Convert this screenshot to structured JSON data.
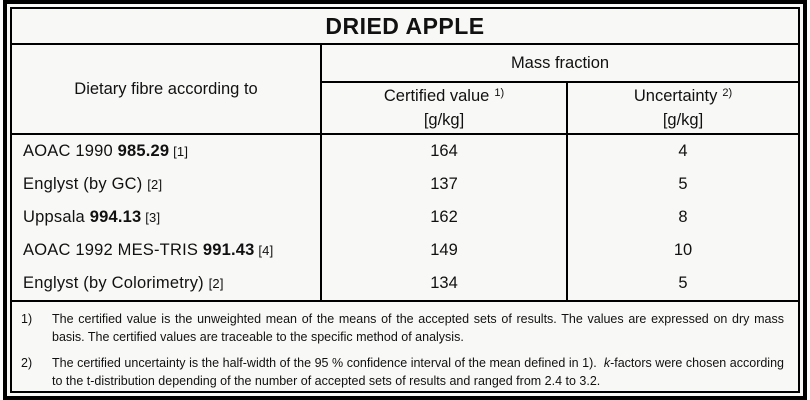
{
  "title": "DRIED APPLE",
  "table": {
    "header": {
      "method_label": "Dietary fibre according to",
      "group_label": "Mass fraction",
      "certified": {
        "label": "Certified value",
        "sup": "1)",
        "unit": "[g/kg]"
      },
      "uncertainty": {
        "label": "Uncertainty",
        "sup": "2)",
        "unit": "[g/kg]"
      }
    },
    "rows": [
      {
        "method_prefix": "AOAC 1990 ",
        "method_bold": "985.29",
        "method_ref": " [1]",
        "certified_value": "164",
        "uncertainty": "4"
      },
      {
        "method_prefix": "Englyst (by GC) ",
        "method_bold": "",
        "method_ref": "[2]",
        "certified_value": "137",
        "uncertainty": "5"
      },
      {
        "method_prefix": "Uppsala ",
        "method_bold": "994.13",
        "method_ref": " [3]",
        "certified_value": "162",
        "uncertainty": "8"
      },
      {
        "method_prefix": "AOAC 1992 MES-TRIS ",
        "method_bold": "991.43",
        "method_ref": " [4]",
        "certified_value": "149",
        "uncertainty": "10"
      },
      {
        "method_prefix": "Englyst (by Colorimetry) ",
        "method_bold": "",
        "method_ref": "[2]",
        "certified_value": "134",
        "uncertainty": "5"
      }
    ]
  },
  "footnotes": [
    {
      "marker": "1)",
      "text_a": "The certified value is the unweighted mean of the means of the accepted sets of results. The values are expressed on dry mass basis. The certified values are traceable to the specific method of analysis.",
      "italic": "",
      "text_b": ""
    },
    {
      "marker": "2)",
      "text_a": "The certified uncertainty is the half-width of the 95 % confidence interval of the mean defined in 1).  ",
      "italic": "k",
      "text_b": "-factors were chosen according to the t-distribution depending of the number of accepted sets of results and ranged from 2.4 to 3.2."
    }
  ],
  "colors": {
    "border": "#000000",
    "background": "#f8f8f6",
    "text": "#111111"
  }
}
